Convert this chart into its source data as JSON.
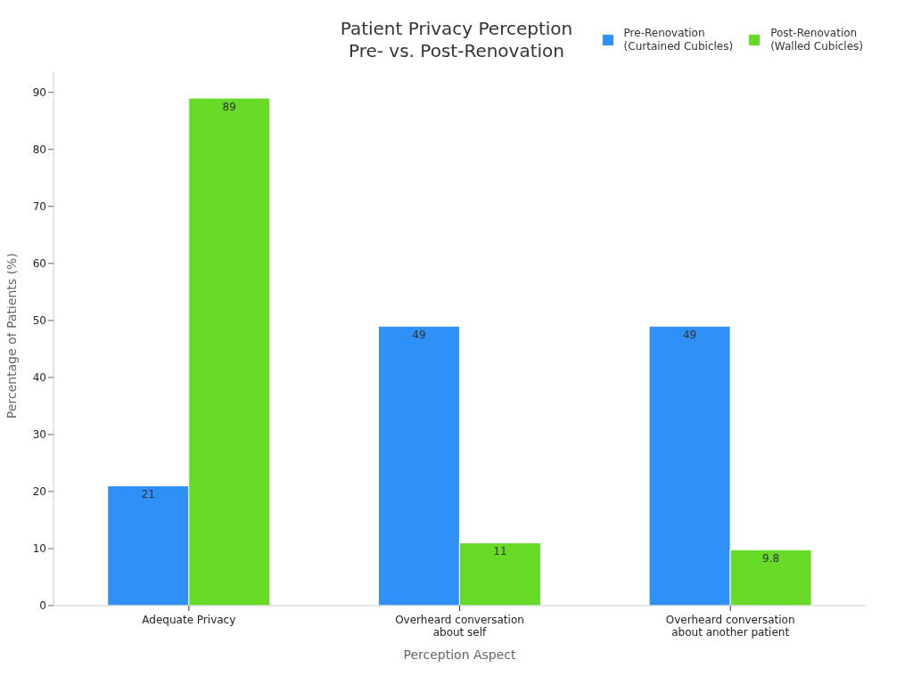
{
  "chart_data": {
    "type": "bar",
    "title": "Patient Privacy Perception\nPre- vs. Post-Renovation",
    "xlabel": "Perception Aspect",
    "ylabel": "Percentage of Patients (%)",
    "categories": [
      "Adequate Privacy",
      "Overheard conversation\nabout self",
      "Overheard conversation\nabout another patient"
    ],
    "series": [
      {
        "name": "Pre-Renovation\n(Curtained Cubicles)",
        "color": "#2f90f8",
        "values": [
          21,
          49,
          49
        ]
      },
      {
        "name": "Post-Renovation\n(Walled Cubicles)",
        "color": "#66da26",
        "values": [
          89,
          11,
          9.8
        ]
      }
    ],
    "ylim": [
      0,
      93.7
    ],
    "yticks": [
      0,
      10,
      20,
      30,
      40,
      50,
      60,
      70,
      80,
      90
    ],
    "grid": false,
    "legend": "top right",
    "data_labels": true
  }
}
